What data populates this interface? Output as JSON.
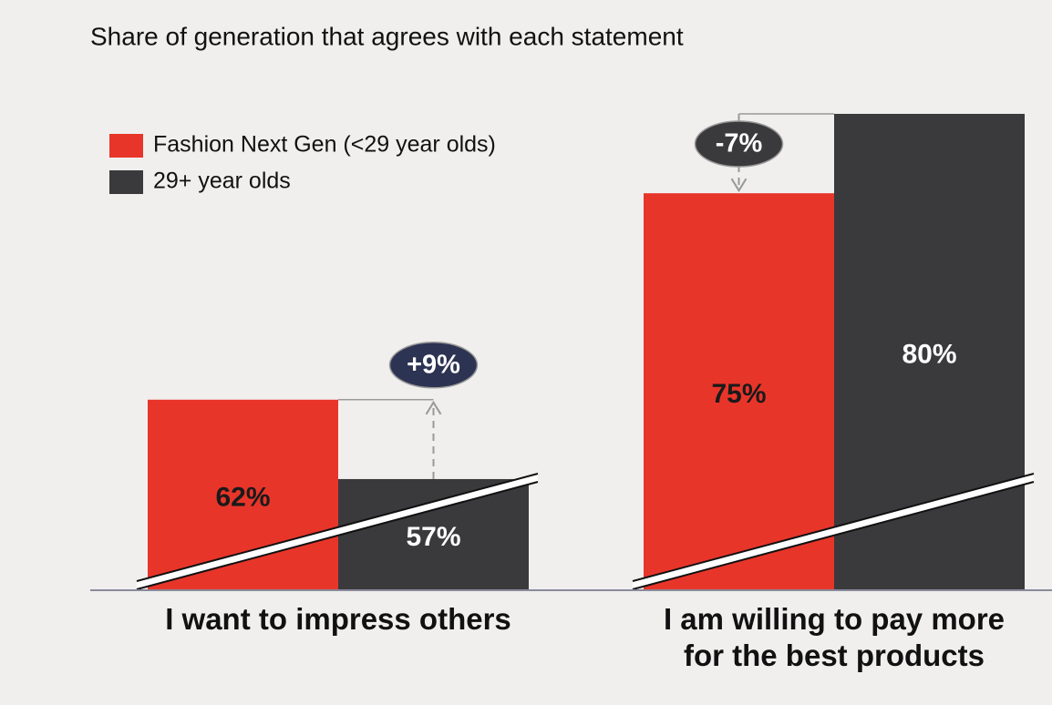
{
  "chart_data": {
    "type": "bar",
    "title": "Share of generation that agrees with each statement",
    "categories": [
      "I want to impress others",
      "I am willing to pay more for the best products"
    ],
    "series": [
      {
        "name": "Fashion Next Gen (<29 year olds)",
        "color": "#e8352a",
        "values": [
          62,
          75
        ],
        "value_labels": [
          "62%",
          "75%"
        ]
      },
      {
        "name": "29+ year olds",
        "color": "#3a3a3c",
        "values": [
          57,
          80
        ],
        "value_labels": [
          "57%",
          "80%"
        ]
      }
    ],
    "annotations": [
      {
        "text": "+9%",
        "color": "#2d3352"
      },
      {
        "text": "-7%",
        "color": "#3a3a3c"
      }
    ],
    "ylim": [
      50,
      80
    ],
    "broken_axis": true
  }
}
